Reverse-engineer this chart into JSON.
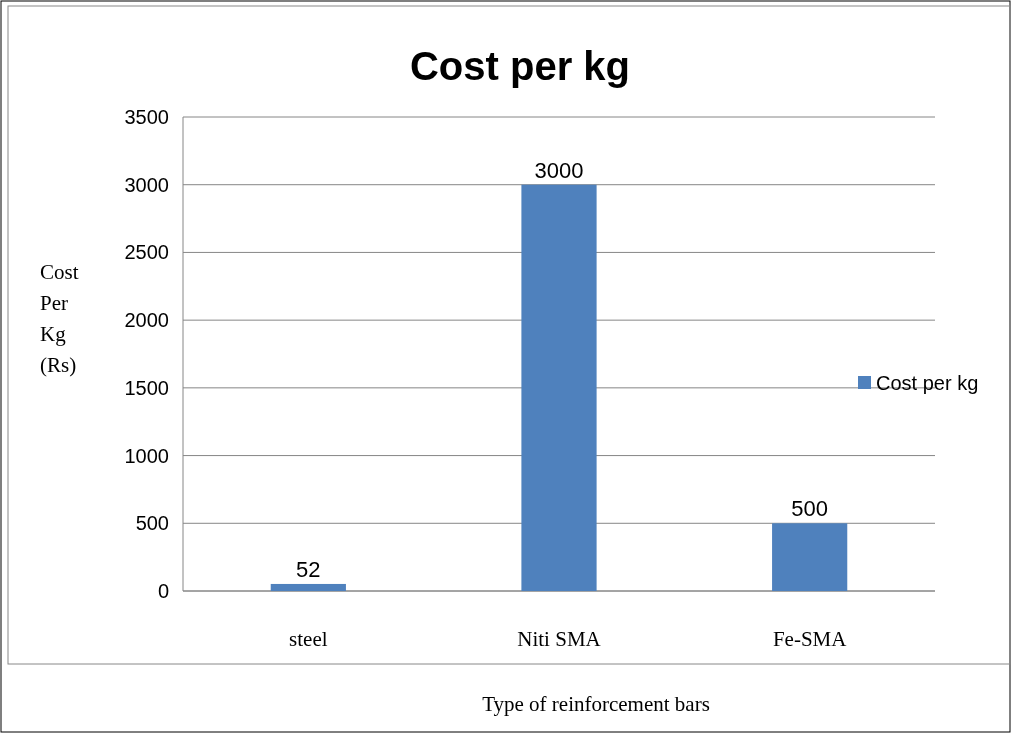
{
  "chart_data": {
    "type": "bar",
    "title": "Cost per kg",
    "xlabel": "Type of reinforcement bars",
    "ylabel": "Cost Per Kg (Rs)",
    "categories": [
      "steel",
      "Niti SMA",
      "Fe-SMA"
    ],
    "series": [
      {
        "name": "Cost per kg",
        "color": "#4f81bd",
        "values": [
          52,
          3000,
          500
        ]
      }
    ],
    "ylim": [
      0,
      3500
    ],
    "yticks": [
      0,
      500,
      1000,
      1500,
      2000,
      2500,
      3000,
      3500
    ],
    "grid": "y",
    "legend": "right",
    "data_labels": true
  }
}
